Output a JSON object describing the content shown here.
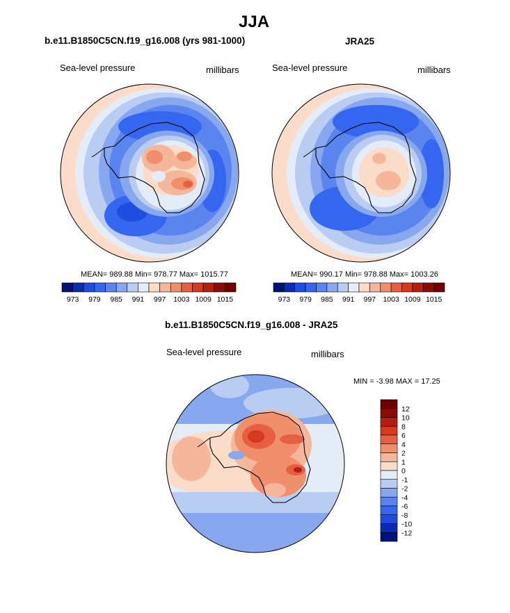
{
  "page": {
    "title": "JJA"
  },
  "panels": {
    "model": {
      "title": "b.e11.B1850C5CN.f19_g16.008 (yrs 981-1000)",
      "field": "Sea-level pressure",
      "units": "millibars",
      "stats": "MEAN= 989.88  Min= 978.77  Max= 1015.77"
    },
    "obs": {
      "title": "JRA25",
      "field": "Sea-level pressure",
      "units": "millibars",
      "stats": "MEAN= 990.17  Min= 978.88  Max= 1003.26"
    },
    "diff": {
      "title": "b.e11.B1850C5CN.f19_g16.008 - JRA25",
      "field": "Sea-level pressure",
      "units": "millibars",
      "stats": "MIN =  -3.98 MAX =  17.25"
    }
  },
  "chart_data": [
    {
      "type": "heatmap",
      "projection": "polar-stereographic-south",
      "title": "b.e11.B1850C5CN.f19_g16.008 (yrs 981-1000)",
      "variable": "Sea-level pressure",
      "units": "millibars",
      "mean": 989.88,
      "min": 978.77,
      "max": 1015.77,
      "colorbar": {
        "levels": [
          973,
          976,
          979,
          982,
          985,
          988,
          991,
          994,
          997,
          1000,
          1003,
          1006,
          1009,
          1012,
          1015
        ],
        "tick_labels": [
          "973",
          "979",
          "985",
          "991",
          "997",
          "1003",
          "1009",
          "1015"
        ],
        "colors": [
          "#00137a",
          "#0b2bb5",
          "#1f4de0",
          "#3566ef",
          "#5a85ee",
          "#87a7ef",
          "#b9cdf3",
          "#e4ecf8",
          "#fbdcc9",
          "#f5b79b",
          "#ef8f6b",
          "#e65f40",
          "#d63a1e",
          "#b51f10",
          "#8a0c06",
          "#6e0000"
        ]
      }
    },
    {
      "type": "heatmap",
      "projection": "polar-stereographic-south",
      "title": "JRA25",
      "variable": "Sea-level pressure",
      "units": "millibars",
      "mean": 990.17,
      "min": 978.88,
      "max": 1003.26,
      "colorbar": {
        "levels": [
          973,
          976,
          979,
          982,
          985,
          988,
          991,
          994,
          997,
          1000,
          1003,
          1006,
          1009,
          1012,
          1015
        ],
        "tick_labels": [
          "973",
          "979",
          "985",
          "991",
          "997",
          "1003",
          "1009",
          "1015"
        ],
        "colors": [
          "#00137a",
          "#0b2bb5",
          "#1f4de0",
          "#3566ef",
          "#5a85ee",
          "#87a7ef",
          "#b9cdf3",
          "#e4ecf8",
          "#fbdcc9",
          "#f5b79b",
          "#ef8f6b",
          "#e65f40",
          "#d63a1e",
          "#b51f10",
          "#8a0c06",
          "#6e0000"
        ]
      }
    },
    {
      "type": "heatmap",
      "projection": "polar-stereographic-south",
      "title": "b.e11.B1850C5CN.f19_g16.008 - JRA25",
      "variable": "Sea-level pressure",
      "units": "millibars",
      "min": -3.98,
      "max": 17.25,
      "colorbar": {
        "levels": [
          -12,
          -10,
          -8,
          -6,
          -4,
          -2,
          -1,
          0,
          1,
          2,
          4,
          6,
          8,
          10,
          12
        ],
        "tick_labels": [
          "12",
          "10",
          "8",
          "6",
          "4",
          "2",
          "1",
          "0",
          "-1",
          "-2",
          "-4",
          "-6",
          "-8",
          "-10",
          "-12"
        ],
        "colors": [
          "#00137a",
          "#0b2bb5",
          "#1f4de0",
          "#3566ef",
          "#5a85ee",
          "#87a7ef",
          "#b9cdf3",
          "#e4ecf8",
          "#fbdcc9",
          "#f5b79b",
          "#ef8f6b",
          "#e65f40",
          "#d63a1e",
          "#b51f10",
          "#8a0c06",
          "#6e0000"
        ]
      }
    }
  ]
}
